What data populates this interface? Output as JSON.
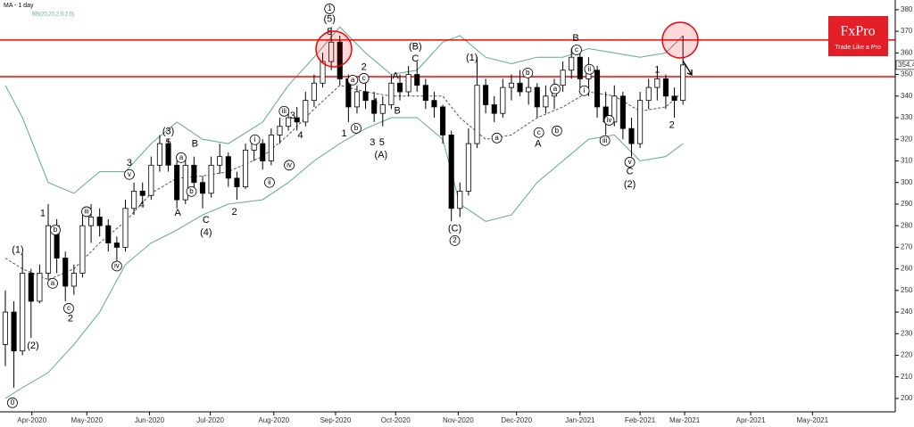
{
  "chart_data": {
    "type": "candlestick",
    "title": "MA - 1 day",
    "indicator": "BB(20,20,2.0,2.0)",
    "brand": "FxPro",
    "tagline": "Trade Like a Pro",
    "last_price": 354.42,
    "xlim": [
      -0.62,
      103.75
    ],
    "ylim": [
      193.8,
      384.5
    ],
    "yticks": [
      200,
      210,
      220,
      230,
      240,
      250,
      260,
      270,
      280,
      290,
      300,
      310,
      320,
      330,
      340,
      350,
      360,
      370,
      380
    ],
    "xticks": [
      {
        "value": 3.1,
        "label": "Apr-2020"
      },
      {
        "value": 9.5,
        "label": "May-2020"
      },
      {
        "value": 16.8,
        "label": "Jun-2020"
      },
      {
        "value": 23.9,
        "label": "Jul-2020"
      },
      {
        "value": 31.3,
        "label": "Aug-2020"
      },
      {
        "value": 38.5,
        "label": "Sep-2020"
      },
      {
        "value": 45.5,
        "label": "Oct-2020"
      },
      {
        "value": 52.8,
        "label": "Nov-2020"
      },
      {
        "value": 59.6,
        "label": "Dec-2020"
      },
      {
        "value": 67.0,
        "label": "Jan-2021"
      },
      {
        "value": 74.0,
        "label": "Feb-2021"
      },
      {
        "value": 79.2,
        "label": "Mar-2021"
      },
      {
        "value": 86.9,
        "label": "Apr-2021"
      },
      {
        "value": 94.1,
        "label": "May-2021"
      }
    ],
    "up_color": "#ffffff",
    "down_color": "#000000",
    "open": [
      225,
      240,
      222,
      258,
      245,
      258,
      280,
      265,
      252,
      258,
      280,
      284,
      280,
      272,
      270,
      288,
      296,
      294,
      308,
      318,
      308,
      292,
      308,
      300,
      295,
      308,
      312,
      302,
      298,
      315,
      318,
      310,
      322,
      326,
      330,
      328,
      338,
      346,
      356,
      365,
      348,
      335,
      342,
      338,
      332,
      336,
      346,
      342,
      350,
      345,
      338,
      335,
      322,
      288,
      296,
      318,
      345,
      336,
      332,
      344,
      346,
      342,
      344,
      335,
      340,
      345,
      352,
      358,
      348,
      352,
      335,
      328,
      340,
      325,
      318,
      338,
      344,
      348,
      340,
      338
    ],
    "high": [
      250,
      245,
      267,
      260,
      262,
      290,
      283,
      268,
      262,
      285,
      290,
      288,
      283,
      275,
      292,
      300,
      300,
      312,
      322,
      320,
      310,
      312,
      312,
      303,
      312,
      318,
      314,
      305,
      318,
      320,
      320,
      325,
      330,
      334,
      335,
      342,
      350,
      360,
      372,
      368,
      350,
      345,
      346,
      342,
      340,
      350,
      350,
      354,
      356,
      348,
      342,
      336,
      324,
      300,
      325,
      358,
      348,
      340,
      348,
      350,
      352,
      350,
      346,
      345,
      348,
      356,
      362,
      360,
      358,
      354,
      342,
      345,
      342,
      330,
      342,
      348,
      352,
      350,
      344,
      368
    ],
    "low": [
      215,
      205,
      220,
      228,
      244,
      255,
      258,
      245,
      248,
      256,
      272,
      275,
      268,
      262,
      268,
      285,
      290,
      292,
      305,
      305,
      288,
      290,
      296,
      288,
      293,
      304,
      298,
      292,
      297,
      310,
      306,
      308,
      318,
      324,
      324,
      326,
      335,
      344,
      352,
      345,
      328,
      332,
      334,
      328,
      326,
      334,
      338,
      340,
      342,
      334,
      330,
      318,
      282,
      284,
      294,
      316,
      332,
      328,
      330,
      338,
      340,
      336,
      330,
      332,
      334,
      342,
      348,
      344,
      340,
      330,
      322,
      326,
      320,
      312,
      316,
      334,
      338,
      334,
      330,
      336
    ],
    "close": [
      240,
      222,
      258,
      245,
      258,
      280,
      265,
      252,
      258,
      280,
      284,
      280,
      272,
      270,
      288,
      296,
      294,
      308,
      318,
      308,
      292,
      308,
      300,
      295,
      308,
      312,
      302,
      298,
      315,
      318,
      310,
      322,
      326,
      330,
      328,
      338,
      346,
      356,
      365,
      348,
      335,
      342,
      338,
      332,
      336,
      346,
      342,
      350,
      345,
      338,
      335,
      322,
      288,
      296,
      318,
      345,
      336,
      332,
      344,
      346,
      342,
      344,
      335,
      340,
      345,
      352,
      358,
      348,
      352,
      335,
      328,
      340,
      325,
      318,
      338,
      344,
      348,
      340,
      338,
      354.42
    ],
    "levels": [
      366,
      349
    ],
    "level_color": "#ff0000",
    "bands": [
      {
        "color": "#5fa88a",
        "dashed": false,
        "x": [
          0,
          2,
          5,
          8,
          11,
          14,
          17,
          20,
          23,
          26,
          30,
          33,
          36,
          39,
          42,
          45,
          48,
          51,
          53,
          56,
          59,
          62,
          65,
          68,
          71,
          74,
          77,
          79
        ],
        "values": [
          345,
          330,
          300,
          295,
          305,
          305,
          318,
          328,
          320,
          318,
          328,
          345,
          358,
          372,
          360,
          350,
          352,
          365,
          368,
          358,
          355,
          358,
          358,
          362,
          360,
          358,
          360,
          368
        ]
      },
      {
        "color": "#555555",
        "dashed": true,
        "x": [
          0,
          2,
          5,
          8,
          11,
          14,
          17,
          20,
          23,
          26,
          30,
          33,
          36,
          39,
          42,
          45,
          48,
          51,
          53,
          56,
          59,
          62,
          65,
          68,
          71,
          74,
          77,
          79
        ],
        "values": [
          265,
          260,
          255,
          260,
          272,
          282,
          295,
          302,
          303,
          305,
          312,
          322,
          334,
          345,
          342,
          340,
          340,
          340,
          330,
          320,
          322,
          330,
          335,
          342,
          340,
          333,
          335,
          342
        ]
      },
      {
        "color": "#5fa88a",
        "dashed": false,
        "x": [
          0,
          2,
          5,
          8,
          11,
          14,
          17,
          20,
          23,
          26,
          30,
          33,
          36,
          39,
          42,
          45,
          48,
          51,
          53,
          56,
          59,
          62,
          65,
          68,
          71,
          74,
          77,
          79
        ],
        "values": [
          200,
          205,
          212,
          225,
          240,
          262,
          272,
          278,
          285,
          290,
          292,
          300,
          310,
          318,
          325,
          330,
          330,
          320,
          290,
          282,
          285,
          300,
          310,
          320,
          322,
          310,
          312,
          318
        ]
      }
    ],
    "annotations": [
      {
        "text": "0",
        "x": 0.83,
        "y": 198,
        "circled": true
      },
      {
        "text": "(1)",
        "x": 1.46,
        "y": 268.6,
        "circled": false
      },
      {
        "text": "(2)",
        "x": 3.23,
        "y": 224.4,
        "circled": false
      },
      {
        "text": "1",
        "x": 4.37,
        "y": 285.5,
        "circled": false
      },
      {
        "text": "a",
        "x": 5.52,
        "y": 253.3,
        "circled": true
      },
      {
        "text": "b",
        "x": 5.83,
        "y": 278,
        "circled": true
      },
      {
        "text": "c",
        "x": 7.39,
        "y": 241.7,
        "circled": true
      },
      {
        "text": "2",
        "x": 7.6,
        "y": 236.8,
        "circled": false
      },
      {
        "text": "iii",
        "x": 9.47,
        "y": 286.5,
        "circled": true
      },
      {
        "text": "iv",
        "x": 13.0,
        "y": 261.3,
        "circled": true
      },
      {
        "text": "v",
        "x": 14.46,
        "y": 303.7,
        "circled": true
      },
      {
        "text": "3",
        "x": 14.46,
        "y": 309,
        "circled": false
      },
      {
        "text": "4",
        "x": 15.9,
        "y": 289.6,
        "circled": false
      },
      {
        "text": "(3)",
        "x": 19.0,
        "y": 323.5,
        "circled": false
      },
      {
        "text": "5",
        "x": 19.0,
        "y": 318.5,
        "circled": false
      },
      {
        "text": "a",
        "x": 20.5,
        "y": 311.5,
        "circled": true
      },
      {
        "text": "b",
        "x": 21.7,
        "y": 295.8,
        "circled": true
      },
      {
        "text": "B",
        "x": 22.1,
        "y": 317.7,
        "circled": false
      },
      {
        "text": "A",
        "x": 20.1,
        "y": 285.9,
        "circled": false
      },
      {
        "text": "C",
        "x": 23.4,
        "y": 282.6,
        "circled": false
      },
      {
        "text": "(4)",
        "x": 23.4,
        "y": 276.8,
        "circled": false
      },
      {
        "text": "2",
        "x": 26.7,
        "y": 286.3,
        "circled": false
      },
      {
        "text": "i",
        "x": 29.1,
        "y": 319.8,
        "circled": true
      },
      {
        "text": "ii",
        "x": 30.8,
        "y": 300,
        "circled": true
      },
      {
        "text": "iii",
        "x": 32.5,
        "y": 333,
        "circled": true
      },
      {
        "text": "iv",
        "x": 33.1,
        "y": 308,
        "circled": true
      },
      {
        "text": "3",
        "x": 33.5,
        "y": 330.9,
        "circled": false
      },
      {
        "text": "4",
        "x": 34.4,
        "y": 321.8,
        "circled": false
      },
      {
        "text": "1",
        "x": 37.8,
        "y": 380.4,
        "circled": true
      },
      {
        "text": "(5)",
        "x": 37.8,
        "y": 375.5,
        "circled": false
      },
      {
        "text": "5",
        "x": 37.8,
        "y": 369.7,
        "circled": false
      },
      {
        "text": "a",
        "x": 40.5,
        "y": 347.4,
        "circled": true
      },
      {
        "text": "c",
        "x": 41.8,
        "y": 348.2,
        "circled": true
      },
      {
        "text": "2",
        "x": 41.8,
        "y": 353.2,
        "circled": false
      },
      {
        "text": "b",
        "x": 40.9,
        "y": 325.1,
        "circled": true
      },
      {
        "text": "1",
        "x": 39.5,
        "y": 322.6,
        "circled": false
      },
      {
        "text": "4",
        "x": 43.1,
        "y": 337.1,
        "circled": false
      },
      {
        "text": "3",
        "x": 42.8,
        "y": 318.5,
        "circled": false
      },
      {
        "text": "5",
        "x": 43.9,
        "y": 318.5,
        "circled": false
      },
      {
        "text": "(A)",
        "x": 43.8,
        "y": 312.7,
        "circled": false
      },
      {
        "text": "A",
        "x": 45.5,
        "y": 349.1,
        "circled": false
      },
      {
        "text": "B",
        "x": 45.7,
        "y": 333,
        "circled": false
      },
      {
        "text": "(B)",
        "x": 47.8,
        "y": 362.7,
        "circled": false
      },
      {
        "text": "C",
        "x": 47.8,
        "y": 357.3,
        "circled": false
      },
      {
        "text": "(1)",
        "x": 54.4,
        "y": 357.7,
        "circled": false
      },
      {
        "text": "(C)",
        "x": 52.4,
        "y": 278.5,
        "circled": false
      },
      {
        "text": "2",
        "x": 52.4,
        "y": 273.1,
        "circled": true
      },
      {
        "text": "b",
        "x": 60.9,
        "y": 350.7,
        "circled": true
      },
      {
        "text": "a",
        "x": 57.3,
        "y": 320.6,
        "circled": true
      },
      {
        "text": "c",
        "x": 62.2,
        "y": 323.1,
        "circled": true
      },
      {
        "text": "A",
        "x": 62.1,
        "y": 317.7,
        "circled": false
      },
      {
        "text": "a",
        "x": 64.1,
        "y": 343.3,
        "circled": true
      },
      {
        "text": "b",
        "x": 64.3,
        "y": 323.9,
        "circled": true
      },
      {
        "text": "c",
        "x": 66.6,
        "y": 361.4,
        "circled": true
      },
      {
        "text": "B",
        "x": 66.5,
        "y": 366.8,
        "circled": false
      },
      {
        "text": "i",
        "x": 67.5,
        "y": 342.5,
        "circled": true
      },
      {
        "text": "ii",
        "x": 68.1,
        "y": 352.4,
        "circled": true
      },
      {
        "text": "iii",
        "x": 69.9,
        "y": 319.4,
        "circled": true
      },
      {
        "text": "iv",
        "x": 70.4,
        "y": 328.8,
        "circled": true
      },
      {
        "text": "v",
        "x": 72.8,
        "y": 309.4,
        "circled": true
      },
      {
        "text": "C",
        "x": 72.8,
        "y": 304.9,
        "circled": false
      },
      {
        "text": "(2)",
        "x": 72.8,
        "y": 299.1,
        "circled": false
      },
      {
        "text": "1",
        "x": 76,
        "y": 352,
        "circled": false
      },
      {
        "text": "2",
        "x": 77.7,
        "y": 326.4,
        "circled": false
      }
    ]
  }
}
